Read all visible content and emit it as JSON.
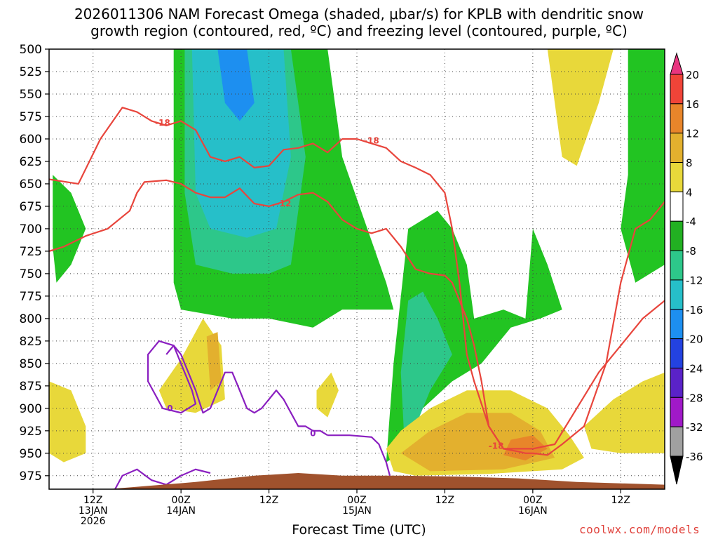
{
  "chart_data": {
    "type": "heatmap",
    "title": "2026011306 NAM Forecast Omega (shaded, μbar/s) for KPLB with dendritic snow\ngrowth region (contoured, red, ºC) and freezing level (contoured, purple, ºC)",
    "xlabel": "Forecast Time (UTC)",
    "credit": "coolwx.com/models",
    "ylim": [
      500,
      990
    ],
    "y_ticks": [
      500,
      525,
      550,
      575,
      600,
      625,
      650,
      675,
      700,
      725,
      750,
      775,
      800,
      825,
      850,
      875,
      900,
      925,
      950,
      975
    ],
    "x_range_hours": [
      0,
      84
    ],
    "x_ticks": [
      {
        "hour": 6,
        "lines": [
          "12Z",
          "13JAN",
          "2026"
        ]
      },
      {
        "hour": 18,
        "lines": [
          "00Z",
          "14JAN"
        ]
      },
      {
        "hour": 30,
        "lines": [
          "12Z"
        ]
      },
      {
        "hour": 42,
        "lines": [
          "00Z",
          "15JAN"
        ]
      },
      {
        "hour": 54,
        "lines": [
          "12Z"
        ]
      },
      {
        "hour": 66,
        "lines": [
          "00Z",
          "16JAN"
        ]
      },
      {
        "hour": 78,
        "lines": [
          "12Z"
        ]
      }
    ],
    "colorbar": {
      "labels": [
        "20",
        "16",
        "12",
        "8",
        "4",
        "-4",
        "-8",
        "-12",
        "-16",
        "-20",
        "-24",
        "-28",
        "-32",
        "-36"
      ],
      "colors": [
        "#e8357f",
        "#f04438",
        "#e8852a",
        "#e3b02e",
        "#e8d83a",
        "#ffffff",
        "#22b022",
        "#2dc78a",
        "#26bfc9",
        "#1d8ff0",
        "#2342e0",
        "#5a22c8",
        "#a019c8",
        "#a0a0a0",
        "#000000"
      ]
    },
    "shading": [
      {
        "level": "-8",
        "color": "#22c422",
        "points": [
          [
            17,
            500
          ],
          [
            38,
            500
          ],
          [
            40,
            620
          ],
          [
            46,
            760
          ],
          [
            47,
            790
          ],
          [
            40,
            790
          ],
          [
            36,
            810
          ],
          [
            30,
            800
          ],
          [
            25,
            800
          ],
          [
            18,
            790
          ],
          [
            17,
            760
          ]
        ]
      },
      {
        "level": "-12",
        "color": "#2dc78a",
        "points": [
          [
            18.5,
            500
          ],
          [
            33,
            500
          ],
          [
            35,
            620
          ],
          [
            33,
            740
          ],
          [
            30,
            750
          ],
          [
            25,
            750
          ],
          [
            20,
            740
          ],
          [
            18.5,
            660
          ]
        ]
      },
      {
        "level": "-16",
        "color": "#26bfc9",
        "points": [
          [
            19.5,
            500
          ],
          [
            32,
            500
          ],
          [
            33,
            620
          ],
          [
            31,
            700
          ],
          [
            27,
            710
          ],
          [
            22,
            700
          ],
          [
            20,
            660
          ]
        ]
      },
      {
        "level": "-20",
        "color": "#1d8ff0",
        "points": [
          [
            23,
            500
          ],
          [
            27,
            500
          ],
          [
            28,
            560
          ],
          [
            26,
            580
          ],
          [
            24,
            560
          ]
        ]
      },
      {
        "level": "-8",
        "color": "#22c422",
        "points": [
          [
            47,
            850
          ],
          [
            49,
            700
          ],
          [
            53,
            680
          ],
          [
            55,
            700
          ],
          [
            57,
            740
          ],
          [
            58,
            800
          ],
          [
            62,
            790
          ],
          [
            65,
            800
          ],
          [
            66,
            700
          ],
          [
            68,
            740
          ],
          [
            70,
            790
          ],
          [
            67,
            800
          ],
          [
            63,
            810
          ],
          [
            59,
            850
          ],
          [
            55,
            870
          ],
          [
            51,
            900
          ],
          [
            48,
            950
          ],
          [
            46,
            960
          ]
        ]
      },
      {
        "level": "-12",
        "color": "#2dc78a",
        "points": [
          [
            48,
            860
          ],
          [
            49,
            780
          ],
          [
            51,
            770
          ],
          [
            53,
            800
          ],
          [
            55,
            840
          ],
          [
            52,
            880
          ],
          [
            50,
            920
          ],
          [
            48.5,
            940
          ]
        ]
      },
      {
        "level": "-8",
        "color": "#22c422",
        "points": [
          [
            79,
            500
          ],
          [
            84,
            500
          ],
          [
            84,
            740
          ],
          [
            80,
            760
          ],
          [
            78,
            700
          ],
          [
            79,
            640
          ]
        ]
      },
      {
        "level": "-8",
        "color": "#22c422",
        "points": [
          [
            0.5,
            640
          ],
          [
            3,
            660
          ],
          [
            5,
            700
          ],
          [
            3,
            740
          ],
          [
            1,
            760
          ],
          [
            0.5,
            720
          ]
        ]
      },
      {
        "level": "4",
        "color": "#e8d83a",
        "points": [
          [
            68,
            500
          ],
          [
            77,
            500
          ],
          [
            75,
            560
          ],
          [
            72,
            630
          ],
          [
            70,
            620
          ],
          [
            69,
            560
          ]
        ]
      },
      {
        "level": "4",
        "color": "#e8d83a",
        "points": [
          [
            46,
            945
          ],
          [
            48,
            925
          ],
          [
            52,
            900
          ],
          [
            57,
            880
          ],
          [
            63,
            880
          ],
          [
            68,
            900
          ],
          [
            71,
            930
          ],
          [
            73,
            955
          ],
          [
            70,
            968
          ],
          [
            60,
            973
          ],
          [
            50,
            975
          ],
          [
            47,
            970
          ]
        ]
      },
      {
        "level": "8",
        "color": "#e3b02e",
        "points": [
          [
            48,
            950
          ],
          [
            52,
            925
          ],
          [
            57,
            905
          ],
          [
            63,
            905
          ],
          [
            67,
            925
          ],
          [
            69,
            955
          ],
          [
            62,
            968
          ],
          [
            52,
            970
          ]
        ]
      },
      {
        "level": "12",
        "color": "#e8852a",
        "points": [
          [
            63,
            935
          ],
          [
            66,
            930
          ],
          [
            68,
            945
          ],
          [
            65,
            958
          ],
          [
            62,
            952
          ]
        ]
      },
      {
        "level": "4",
        "color": "#e8d83a",
        "points": [
          [
            15,
            880
          ],
          [
            18,
            845
          ],
          [
            21,
            800
          ],
          [
            23.5,
            830
          ],
          [
            24,
            890
          ],
          [
            20,
            905
          ],
          [
            16,
            900
          ]
        ]
      },
      {
        "level": "8",
        "color": "#e3b02e",
        "points": [
          [
            21.5,
            820
          ],
          [
            23,
            815
          ],
          [
            23.5,
            870
          ],
          [
            22,
            880
          ]
        ]
      },
      {
        "level": "4",
        "color": "#e8d83a",
        "points": [
          [
            0,
            870
          ],
          [
            3,
            880
          ],
          [
            5,
            920
          ],
          [
            5,
            950
          ],
          [
            2,
            960
          ],
          [
            0,
            950
          ]
        ]
      },
      {
        "level": "4",
        "color": "#e8d83a",
        "points": [
          [
            73,
            920
          ],
          [
            77,
            890
          ],
          [
            81,
            870
          ],
          [
            84,
            860
          ],
          [
            84,
            950
          ],
          [
            78,
            950
          ],
          [
            74,
            945
          ]
        ]
      },
      {
        "level": "4",
        "color": "#e8d83a",
        "points": [
          [
            36.5,
            880
          ],
          [
            38.5,
            860
          ],
          [
            39.5,
            880
          ],
          [
            38,
            910
          ],
          [
            36.5,
            900
          ]
        ]
      }
    ],
    "dgz_minus12_hours": [
      0,
      2,
      5,
      8,
      11,
      12,
      13,
      16,
      18,
      20,
      22,
      24,
      26,
      28,
      30,
      32,
      34,
      36,
      38,
      40,
      42,
      44,
      46,
      48,
      50,
      52,
      54,
      55,
      56,
      57,
      58,
      59,
      60,
      62,
      64,
      65,
      66,
      68,
      70,
      73,
      76,
      78,
      80,
      82,
      84
    ],
    "dgz_minus12_press": [
      725,
      720,
      708,
      700,
      680,
      660,
      648,
      646,
      650,
      660,
      665,
      665,
      655,
      672,
      675,
      670,
      662,
      660,
      670,
      690,
      700,
      705,
      700,
      720,
      745,
      750,
      752,
      760,
      780,
      800,
      830,
      870,
      920,
      945,
      948,
      950,
      950,
      952,
      940,
      920,
      850,
      760,
      700,
      690,
      670
    ],
    "dgz_minus18_hours": [
      0,
      4,
      7,
      10,
      12,
      14,
      16,
      18,
      20,
      22,
      24,
      26,
      28,
      30,
      32,
      34,
      36,
      38,
      40,
      42,
      44,
      46,
      48,
      50,
      52,
      54,
      55,
      56,
      57,
      58,
      60,
      62,
      66,
      69,
      72,
      75,
      78,
      81,
      84
    ],
    "dgz_minus18_press": [
      645,
      650,
      600,
      565,
      570,
      580,
      585,
      580,
      590,
      620,
      625,
      620,
      632,
      630,
      612,
      610,
      605,
      615,
      600,
      600,
      605,
      610,
      625,
      632,
      640,
      660,
      700,
      760,
      840,
      870,
      920,
      945,
      945,
      940,
      900,
      860,
      830,
      800,
      780
    ],
    "freezing_level_hours": [
      16,
      17,
      18,
      19,
      20,
      21,
      22,
      23,
      24,
      25,
      26,
      27,
      28,
      29,
      30,
      31,
      32,
      33,
      34,
      35,
      36,
      37,
      38
    ],
    "freezing_level_press": [
      840,
      830,
      840,
      860,
      880,
      905,
      900,
      880,
      860,
      860,
      880,
      900,
      905,
      900,
      890,
      880,
      890,
      905,
      920,
      920,
      925,
      925,
      930
    ],
    "zero_label": "0",
    "minus12_label": "-12",
    "minus18_label": "-18"
  }
}
